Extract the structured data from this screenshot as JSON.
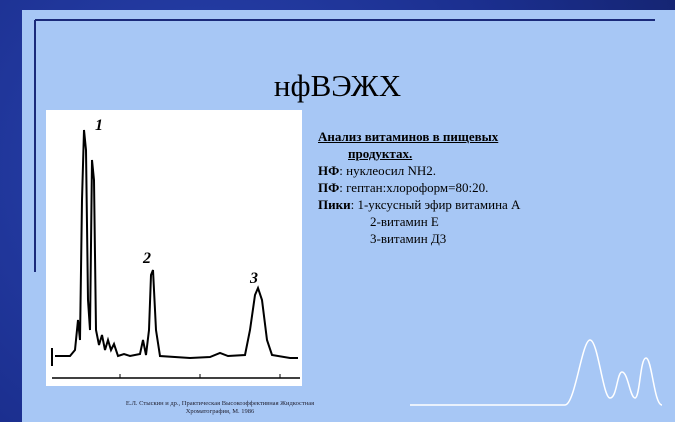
{
  "title": "нфВЭЖХ",
  "figure": {
    "peak_labels": [
      "1",
      "2",
      "3"
    ]
  },
  "description": {
    "heading": [
      "Анализ витаминов в пищевых",
      "продуктах."
    ],
    "lines": [
      {
        "label": "НФ",
        "text": ": нуклеосил NH2."
      },
      {
        "label": "ПФ",
        "text": ": гептан:хлороформ=80:20."
      },
      {
        "label": "Пики",
        "text": ": 1-уксусный эфир витамина А"
      }
    ],
    "peaks": [
      "2-витамин Е",
      "3-витамин Д3"
    ]
  },
  "citation": [
    "Е.Л. Стыскин и др., Практическая Высокоэффективная Жидкостная",
    "Хроматография, М. 1986"
  ]
}
